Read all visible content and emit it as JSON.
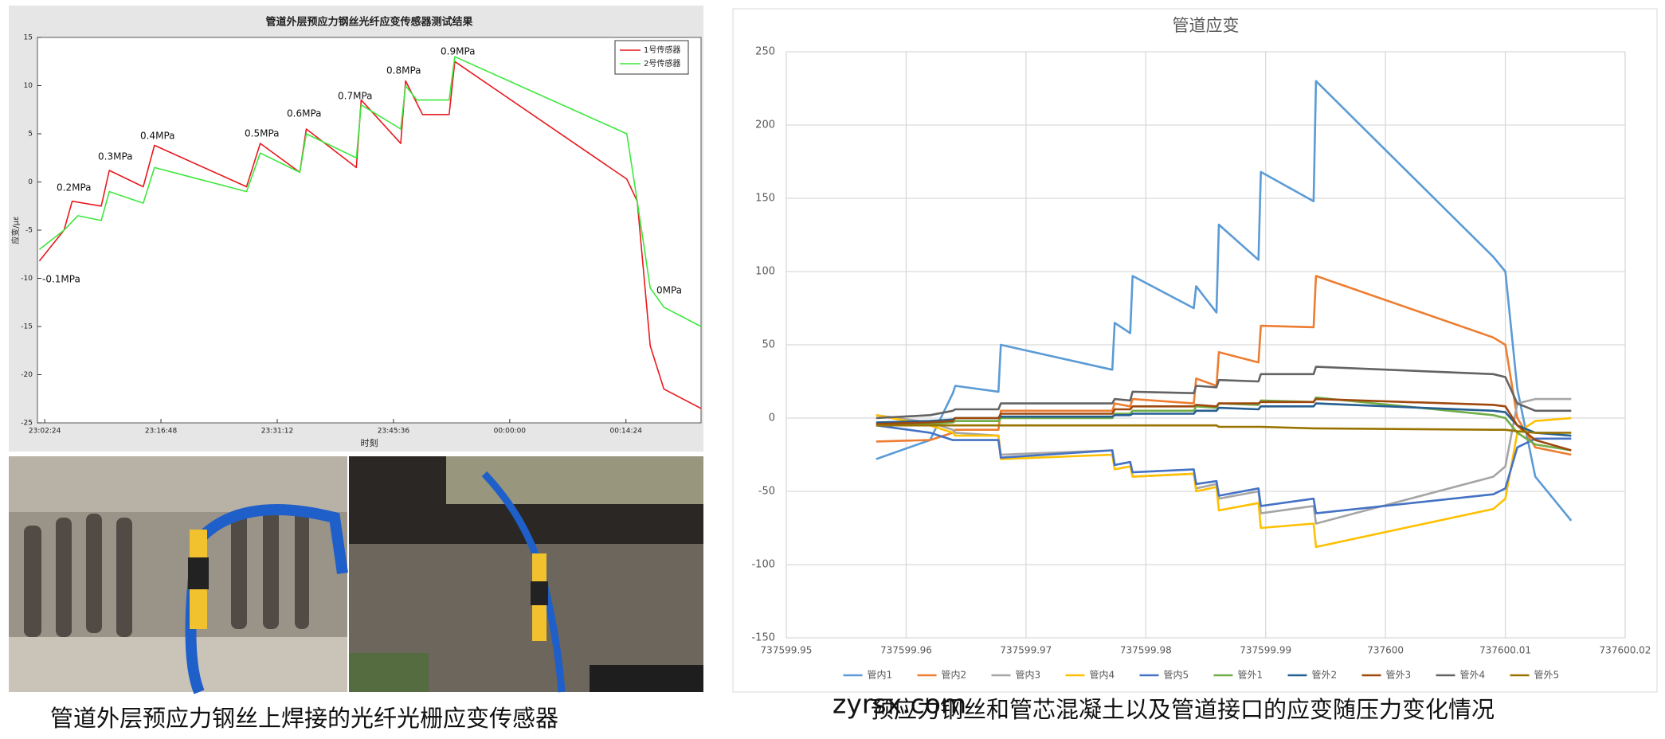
{
  "chart_data": [
    {
      "type": "line",
      "title": "管道外层预应力钢丝光纤应变传感器测试结果",
      "xlabel": "时刻",
      "ylabel": "应变/με",
      "xlim": [
        "23:01:30",
        "00:23:42"
      ],
      "xticks": [
        "23:02:24",
        "23:16:48",
        "23:31:12",
        "23:45:36",
        "00:00:00",
        "00:14:24"
      ],
      "ylim": [
        -25,
        15
      ],
      "yticks": [
        -25,
        -20,
        -15,
        -10,
        -5,
        0,
        5,
        10,
        15
      ],
      "grid": false,
      "legend": "upper right",
      "annotations": [
        "-0.1MPa",
        "0.2MPa",
        "0.3MPa",
        "0.4MPa",
        "0.5MPa",
        "0.6MPa",
        "0.7MPa",
        "0.8MPa",
        "0.9MPa",
        "0MPa"
      ],
      "series": [
        {
          "name": "1号传感器",
          "color": "#e8191e",
          "x": [
            "23:01:44",
            "23:04:48",
            "23:05:48",
            "23:09:24",
            "23:10:24",
            "23:14:36",
            "23:16:00",
            "23:27:24",
            "23:29:06",
            "23:34:00",
            "23:34:48",
            "23:41:00",
            "23:41:36",
            "23:46:30",
            "23:47:06",
            "23:49:12",
            "23:52:30",
            "23:53:12",
            "00:14:30",
            "00:15:48",
            "00:17:24",
            "00:19:06",
            "00:23:42"
          ],
          "values": [
            -8.2,
            -5,
            -2,
            -2.5,
            1.2,
            -0.5,
            3.8,
            -0.5,
            4,
            1,
            5.5,
            1.5,
            8.5,
            4,
            10.5,
            7,
            7,
            12.5,
            0.3,
            -2,
            -17,
            -21.5,
            -23.5
          ]
        },
        {
          "name": "2号传感器",
          "color": "#3ce83c",
          "x": [
            "23:01:44",
            "23:04:48",
            "23:06:30",
            "23:09:24",
            "23:10:24",
            "23:14:36",
            "23:16:00",
            "23:27:24",
            "23:29:06",
            "23:34:00",
            "23:34:48",
            "23:41:00",
            "23:41:36",
            "23:46:30",
            "23:47:06",
            "23:48:30",
            "23:52:30",
            "23:53:12",
            "00:14:30",
            "00:15:48",
            "00:17:24",
            "00:19:06",
            "00:23:42"
          ],
          "values": [
            -7,
            -5,
            -3.5,
            -4,
            -1,
            -2.2,
            1.5,
            -1,
            3,
            1,
            5,
            2.5,
            8,
            5.5,
            10,
            8.5,
            8.5,
            13,
            5,
            -2,
            -11,
            -13,
            -15
          ]
        }
      ]
    },
    {
      "type": "line",
      "title": "管道应变",
      "xlim": [
        737599.95,
        737600.02
      ],
      "xticks": [
        737599.95,
        737599.96,
        737599.97,
        737599.98,
        737599.99,
        737600,
        737600.01,
        737600.02
      ],
      "ylim": [
        -150,
        250
      ],
      "yticks": [
        -150,
        -100,
        -50,
        0,
        50,
        100,
        150,
        200,
        250
      ],
      "grid": true,
      "legend": "bottom",
      "x": [
        737599.9575,
        737599.962,
        737599.9639,
        737599.9641,
        737599.9677,
        737599.9679,
        737599.9772,
        737599.9774,
        737599.9787,
        737599.9789,
        737599.984,
        737599.9842,
        737599.9859,
        737599.9861,
        737599.9894,
        737599.9896,
        737599.994,
        737599.9942,
        737600.009,
        737600.01,
        737600.011,
        737600.0125,
        737600.0155
      ],
      "series": [
        {
          "name": "管内1",
          "color": "#5b9bd5",
          "values": [
            -28,
            -15,
            17,
            22,
            18,
            50,
            33,
            65,
            58,
            97,
            75,
            90,
            72,
            132,
            108,
            168,
            148,
            230,
            110,
            100,
            20,
            -40,
            -70
          ]
        },
        {
          "name": "管内2",
          "color": "#ed7d31",
          "values": [
            -16,
            -15,
            -10,
            -8,
            -8,
            5,
            5,
            10,
            8,
            13,
            10,
            27,
            22,
            45,
            38,
            63,
            62,
            97,
            55,
            50,
            0,
            -20,
            -25
          ]
        },
        {
          "name": "管内3",
          "color": "#a5a5a5",
          "values": [
            2,
            -3,
            -8,
            -10,
            -12,
            -25,
            -22,
            -32,
            -30,
            -40,
            -38,
            -48,
            -45,
            -55,
            -50,
            -65,
            -60,
            -72,
            -40,
            -33,
            10,
            13,
            13
          ]
        },
        {
          "name": "管内4",
          "color": "#ffc000",
          "values": [
            2,
            -5,
            -10,
            -12,
            -12,
            -28,
            -25,
            -35,
            -33,
            -40,
            -38,
            -50,
            -47,
            -63,
            -58,
            -75,
            -72,
            -88,
            -62,
            -55,
            -10,
            -2,
            0
          ]
        },
        {
          "name": "管内5",
          "color": "#4472c4",
          "values": [
            -5,
            -10,
            -15,
            -15,
            -15,
            -27,
            -22,
            -32,
            -30,
            -37,
            -35,
            -45,
            -43,
            -53,
            -48,
            -60,
            -55,
            -65,
            -52,
            -48,
            -20,
            -14,
            -14
          ]
        },
        {
          "name": "管外1",
          "color": "#70ad47",
          "values": [
            -5,
            -4,
            -3,
            -2,
            -2,
            0,
            0,
            3,
            3,
            5,
            5,
            8,
            7,
            10,
            9,
            12,
            11,
            14,
            2,
            0,
            -10,
            -18,
            -22
          ]
        },
        {
          "name": "管外2",
          "color": "#255e91",
          "values": [
            -3,
            -2,
            -1,
            0,
            0,
            1,
            1,
            2,
            2,
            3,
            3,
            5,
            5,
            7,
            6,
            8,
            8,
            10,
            5,
            4,
            -5,
            -10,
            -12
          ]
        },
        {
          "name": "管外3",
          "color": "#9e480e",
          "values": [
            -4,
            -3,
            -2,
            0,
            0,
            3,
            3,
            6,
            6,
            8,
            8,
            9,
            8,
            10,
            10,
            11,
            11,
            13,
            9,
            8,
            -5,
            -15,
            -22
          ]
        },
        {
          "name": "管外4",
          "color": "#636363",
          "values": [
            0,
            2,
            5,
            6,
            6,
            10,
            10,
            13,
            12,
            18,
            17,
            22,
            21,
            26,
            25,
            30,
            30,
            35,
            30,
            28,
            10,
            5,
            5
          ]
        },
        {
          "name": "管外5",
          "color": "#997300",
          "values": [
            -5,
            -5,
            -5,
            -5,
            -5,
            -5,
            -5,
            -5,
            -5,
            -5,
            -5,
            -5,
            -5,
            -6,
            -6,
            -6,
            -7,
            -7,
            -8,
            -8,
            -9,
            -10,
            -10
          ]
        }
      ]
    }
  ],
  "captions": [
    "管道外层预应力钢丝上焊接的光纤光栅应变传感器",
    "预应力钢丝和管芯混凝土以及管道接口的应变随压力变化情况"
  ],
  "watermark": "zyrsx.com"
}
